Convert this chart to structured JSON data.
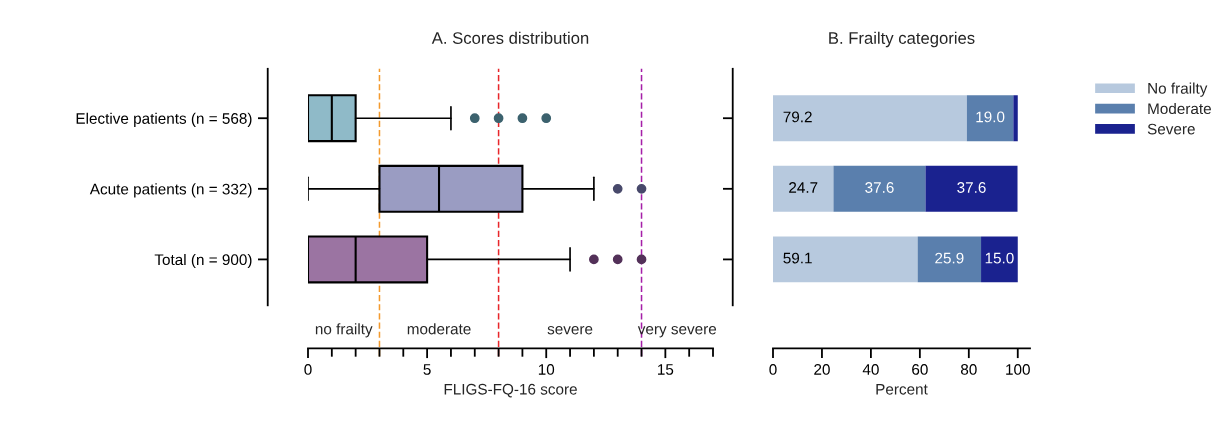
{
  "chart_data": [
    {
      "type": "box",
      "title": "A. Scores distribution",
      "xlabel": "FLIGS-FQ-16 score",
      "orientation": "horizontal",
      "categories": [
        "Elective patients (n = 568)",
        "Acute patients (n = 332)",
        "Total (n = 900)"
      ],
      "colors": [
        "#8fbac8",
        "#9a9cc2",
        "#9b74a2"
      ],
      "boxes": [
        {
          "low": 0,
          "q1": 0,
          "median": 1,
          "q3": 2,
          "high": 6,
          "outliers": [
            7,
            8,
            9,
            10
          ]
        },
        {
          "low": 0,
          "q1": 3,
          "median": 5.5,
          "q3": 9,
          "high": 12,
          "outliers": [
            13,
            14
          ]
        },
        {
          "low": 0,
          "q1": 0,
          "median": 2,
          "q3": 5,
          "high": 11,
          "outliers": [
            12,
            13,
            14
          ]
        }
      ],
      "xlim": [
        0,
        17
      ],
      "xticks": [
        0,
        {
          "value": 1,
          "label": null
        },
        {
          "value": 2,
          "label": null
        },
        {
          "value": 3,
          "label": null
        },
        {
          "value": 4,
          "label": null
        },
        5,
        {
          "value": 6,
          "label": null
        },
        {
          "value": 7,
          "label": null
        },
        {
          "value": 8,
          "label": null
        },
        {
          "value": 9,
          "label": null
        },
        10,
        {
          "value": 11,
          "label": null
        },
        {
          "value": 12,
          "label": null
        },
        {
          "value": 13,
          "label": null
        },
        {
          "value": 14,
          "label": null
        },
        15,
        {
          "value": 16,
          "label": null
        },
        {
          "value": 17,
          "label": null
        }
      ],
      "ref_lines": [
        {
          "axis": "x",
          "value": 3,
          "color": "#f39a2e",
          "line_style": "dashed"
        },
        {
          "axis": "x",
          "value": 8,
          "color": "#e8262a",
          "line_style": "dashed"
        },
        {
          "axis": "x",
          "value": 14,
          "color": "#a51fa8",
          "line_style": "dashed"
        }
      ],
      "annotations": [
        "no frailty",
        "moderate",
        "severe",
        "very severe"
      ],
      "grid": false
    },
    {
      "type": "bar",
      "title": "B. Frailty categories",
      "xlabel": "Percent",
      "orientation": "horizontal",
      "stacked": true,
      "categories": [
        null,
        null,
        null
      ],
      "tick_labels": "x",
      "series": [
        {
          "name": "No frailty",
          "color": "#b7c9de",
          "values": [
            79.2,
            24.7,
            59.1
          ],
          "value_labels": [
            "79.2",
            "24.7",
            "59.1"
          ]
        },
        {
          "name": "Moderate",
          "color": "#5a7fad",
          "values": [
            19.0,
            37.6,
            25.9
          ],
          "value_labels": [
            "19.0",
            "37.6",
            "25.9"
          ]
        },
        {
          "name": "Severe",
          "color": "#1a228f",
          "values": [
            1.8,
            37.6,
            15.0
          ],
          "value_labels": [
            null,
            "37.6",
            "15.0"
          ]
        }
      ],
      "xlim": [
        0,
        105
      ],
      "xticks": [
        0,
        20,
        40,
        60,
        80,
        100
      ],
      "grid": false,
      "legend": "top right"
    }
  ]
}
